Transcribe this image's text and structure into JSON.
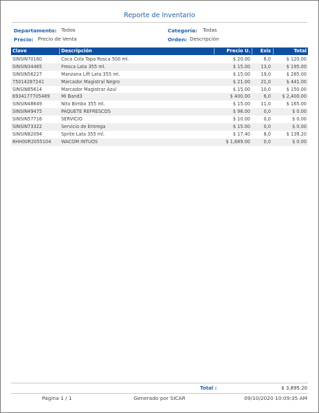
{
  "report": {
    "title": "Reporte de Inventario"
  },
  "filters": {
    "departamento_label": "Departamento:",
    "departamento_value": "Todos",
    "categoria_label": "Categoría:",
    "categoria_value": "Todas",
    "precio_label": "Precio:",
    "precio_value": "Precio de Venta",
    "orden_label": "Orden:",
    "orden_value": "Descripción"
  },
  "table": {
    "headers": {
      "clave": "Clave",
      "descripcion": "Descripción",
      "precio": "Precio U.",
      "exis": "Exis",
      "total": "Total"
    },
    "rows": [
      {
        "clave": "SINSIN70160",
        "descripcion": "Coca Cola Tapa Rosca 500 ml.",
        "precio": "$ 20.00",
        "exis": "6,0",
        "total": "$ 120.00"
      },
      {
        "clave": "SINSIN34465",
        "descripcion": "Fresca Lata 355 ml.",
        "precio": "$ 15.00",
        "exis": "13,0",
        "total": "$ 195.00"
      },
      {
        "clave": "SINSIN56227",
        "descripcion": "Manzana Lift Lata 355 ml.",
        "precio": "$ 15.00",
        "exis": "19,0",
        "total": "$ 285.00"
      },
      {
        "clave": "75014287241",
        "descripcion": "Marcador Magistral Negro",
        "precio": "$ 21.00",
        "exis": "21,0",
        "total": "$ 441.00"
      },
      {
        "clave": "SINSIN85614",
        "descripcion": "Marcador Magistrar Azul",
        "precio": "$ 15.00",
        "exis": "10,0",
        "total": "$ 150.00"
      },
      {
        "clave": "6934177705489",
        "descripcion": "Mi Band3",
        "precio": "$ 400.00",
        "exis": "6,0",
        "total": "$ 2,400.00"
      },
      {
        "clave": "SINSIN48649",
        "descripcion": "Nito Bimbo 355 ml.",
        "precio": "$ 15.00",
        "exis": "11,0",
        "total": "$ 165.00"
      },
      {
        "clave": "SINSIN49475",
        "descripcion": "PAQUETE REFRESCOS",
        "precio": "$ 96.00",
        "exis": "0,0",
        "total": "$ 0.00"
      },
      {
        "clave": "SINSIN57716",
        "descripcion": "SERVICIO",
        "precio": "$ 10.00",
        "exis": "0,0",
        "total": "$ 0.00"
      },
      {
        "clave": "SINSIN73322",
        "descripcion": "Servicio de Entrega",
        "precio": "$ 15.00",
        "exis": "0,0",
        "total": "$ 0.00"
      },
      {
        "clave": "SINSIN82094",
        "descripcion": "Sprite Lata 355 ml.",
        "precio": "$ 17.40",
        "exis": "8,0",
        "total": "$ 139.20"
      },
      {
        "clave": "8HH00R2055104",
        "descripcion": "WACOM INTUOS",
        "precio": "$ 1,689.00",
        "exis": "0,0",
        "total": "$ 0.00"
      }
    ],
    "total_label": "Total :",
    "total_value": "$ 3,895.20"
  },
  "footer": {
    "page": "Página 1 / 1",
    "generated": "Generado por SICAR",
    "datetime": "09/10/2020 10:09:35 AM"
  },
  "colors": {
    "accent": "#1f5fa8",
    "header_bg": "#0f4fa0",
    "row_alt": "#efefef"
  }
}
